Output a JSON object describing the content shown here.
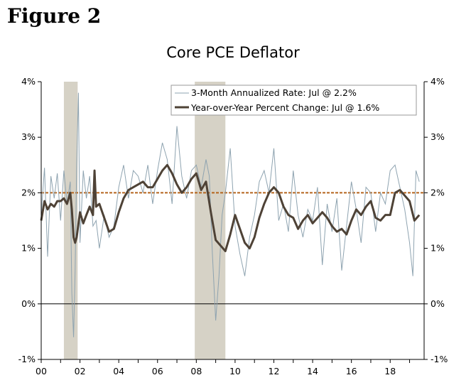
{
  "figure_label": "Figure 2",
  "colors": {
    "three_month": "#8ea3b0",
    "year_over_year": "#4e4236",
    "reference": "#b5651d",
    "recession": "#d6d2c6",
    "axis": "#000000"
  },
  "chart_data": {
    "type": "line",
    "title": "Core PCE Deflator",
    "xlabel": "",
    "ylabel": "",
    "xlim": [
      2000,
      2019.75
    ],
    "ylim": [
      -1,
      4
    ],
    "x_tick_labels": [
      "00",
      "02",
      "04",
      "06",
      "08",
      "10",
      "12",
      "14",
      "16",
      "18"
    ],
    "x_tick_values": [
      2000,
      2002,
      2004,
      2006,
      2008,
      2010,
      2012,
      2014,
      2016,
      2018
    ],
    "y_tick_labels": [
      "-1%",
      "0%",
      "1%",
      "2%",
      "3%",
      "4%"
    ],
    "y_tick_values": [
      -1,
      0,
      1,
      2,
      3,
      4
    ],
    "reference_line": 2.0,
    "recessions": [
      [
        2001.17,
        2001.88
      ],
      [
        2007.92,
        2009.5
      ]
    ],
    "series": [
      {
        "name": "3-Month Annualized Rate",
        "legend": "3-Month Annualized Rate: Jul @ 2.2%",
        "x": [
          2000.0,
          2000.17,
          2000.33,
          2000.5,
          2000.67,
          2000.83,
          2001.0,
          2001.17,
          2001.33,
          2001.5,
          2001.58,
          2001.67,
          2001.75,
          2001.83,
          2001.92,
          2002.0,
          2002.17,
          2002.33,
          2002.5,
          2002.67,
          2002.83,
          2003.0,
          2003.25,
          2003.5,
          2003.75,
          2004.0,
          2004.25,
          2004.5,
          2004.75,
          2005.0,
          2005.25,
          2005.5,
          2005.75,
          2006.0,
          2006.25,
          2006.5,
          2006.75,
          2007.0,
          2007.25,
          2007.5,
          2007.75,
          2008.0,
          2008.25,
          2008.5,
          2008.67,
          2008.83,
          2009.0,
          2009.17,
          2009.33,
          2009.5,
          2009.75,
          2010.0,
          2010.25,
          2010.5,
          2010.75,
          2011.0,
          2011.25,
          2011.5,
          2011.75,
          2012.0,
          2012.25,
          2012.5,
          2012.75,
          2013.0,
          2013.25,
          2013.5,
          2013.75,
          2014.0,
          2014.25,
          2014.5,
          2014.75,
          2015.0,
          2015.25,
          2015.5,
          2015.75,
          2016.0,
          2016.25,
          2016.5,
          2016.75,
          2017.0,
          2017.25,
          2017.5,
          2017.75,
          2018.0,
          2018.25,
          2018.5,
          2018.75,
          2019.0,
          2019.17,
          2019.33,
          2019.5
        ],
        "values": [
          1.6,
          2.45,
          0.85,
          2.3,
          1.9,
          2.35,
          1.5,
          2.4,
          1.8,
          2.2,
          0.2,
          -0.6,
          0.6,
          2.5,
          3.8,
          1.1,
          2.4,
          1.9,
          2.3,
          1.4,
          1.5,
          1.0,
          1.6,
          1.2,
          1.4,
          2.1,
          2.5,
          1.9,
          2.4,
          2.3,
          2.0,
          2.5,
          1.8,
          2.4,
          2.9,
          2.6,
          1.8,
          3.2,
          2.3,
          1.9,
          2.4,
          2.5,
          2.1,
          2.6,
          2.3,
          0.9,
          -0.3,
          0.5,
          1.6,
          2.0,
          2.8,
          1.4,
          0.9,
          0.5,
          1.2,
          1.6,
          2.2,
          2.4,
          2.0,
          2.8,
          1.5,
          1.8,
          1.3,
          2.4,
          1.6,
          1.2,
          1.7,
          1.5,
          2.1,
          0.7,
          1.8,
          1.3,
          1.9,
          0.6,
          1.4,
          2.2,
          1.7,
          1.1,
          2.1,
          2.0,
          1.3,
          2.0,
          1.8,
          2.4,
          2.5,
          2.1,
          1.7,
          1.1,
          0.5,
          2.4,
          2.2
        ]
      },
      {
        "name": "Year-over-Year Percent Change",
        "legend": "Year-over-Year Percent Change: Jul @ 1.6%",
        "x": [
          2000.0,
          2000.17,
          2000.33,
          2000.5,
          2000.67,
          2000.83,
          2001.0,
          2001.17,
          2001.33,
          2001.5,
          2001.58,
          2001.67,
          2001.75,
          2001.83,
          2002.0,
          2002.17,
          2002.33,
          2002.5,
          2002.67,
          2002.75,
          2002.83,
          2003.0,
          2003.25,
          2003.5,
          2003.75,
          2004.0,
          2004.25,
          2004.5,
          2004.75,
          2005.0,
          2005.25,
          2005.5,
          2005.75,
          2006.0,
          2006.25,
          2006.5,
          2006.75,
          2007.0,
          2007.25,
          2007.5,
          2007.75,
          2008.0,
          2008.25,
          2008.5,
          2008.75,
          2009.0,
          2009.25,
          2009.5,
          2009.75,
          2010.0,
          2010.25,
          2010.5,
          2010.75,
          2011.0,
          2011.25,
          2011.5,
          2011.75,
          2012.0,
          2012.25,
          2012.5,
          2012.75,
          2013.0,
          2013.25,
          2013.5,
          2013.75,
          2014.0,
          2014.25,
          2014.5,
          2014.75,
          2015.0,
          2015.25,
          2015.5,
          2015.75,
          2016.0,
          2016.25,
          2016.5,
          2016.75,
          2017.0,
          2017.25,
          2017.5,
          2017.75,
          2018.0,
          2018.25,
          2018.5,
          2018.75,
          2019.0,
          2019.25,
          2019.5
        ],
        "values": [
          1.5,
          1.85,
          1.7,
          1.8,
          1.75,
          1.85,
          1.85,
          1.9,
          1.8,
          2.0,
          1.7,
          1.2,
          1.1,
          1.2,
          1.65,
          1.45,
          1.6,
          1.75,
          1.6,
          2.4,
          1.75,
          1.8,
          1.55,
          1.3,
          1.35,
          1.65,
          1.9,
          2.05,
          2.1,
          2.15,
          2.2,
          2.1,
          2.1,
          2.25,
          2.4,
          2.5,
          2.35,
          2.15,
          2.0,
          2.1,
          2.25,
          2.35,
          2.05,
          2.2,
          1.65,
          1.15,
          1.05,
          0.95,
          1.25,
          1.6,
          1.35,
          1.1,
          1.0,
          1.2,
          1.55,
          1.8,
          2.0,
          2.1,
          2.0,
          1.75,
          1.6,
          1.55,
          1.35,
          1.5,
          1.6,
          1.45,
          1.55,
          1.65,
          1.55,
          1.4,
          1.3,
          1.35,
          1.25,
          1.5,
          1.7,
          1.6,
          1.75,
          1.85,
          1.55,
          1.5,
          1.6,
          1.6,
          2.0,
          2.05,
          1.95,
          1.85,
          1.5,
          1.6
        ]
      }
    ]
  }
}
